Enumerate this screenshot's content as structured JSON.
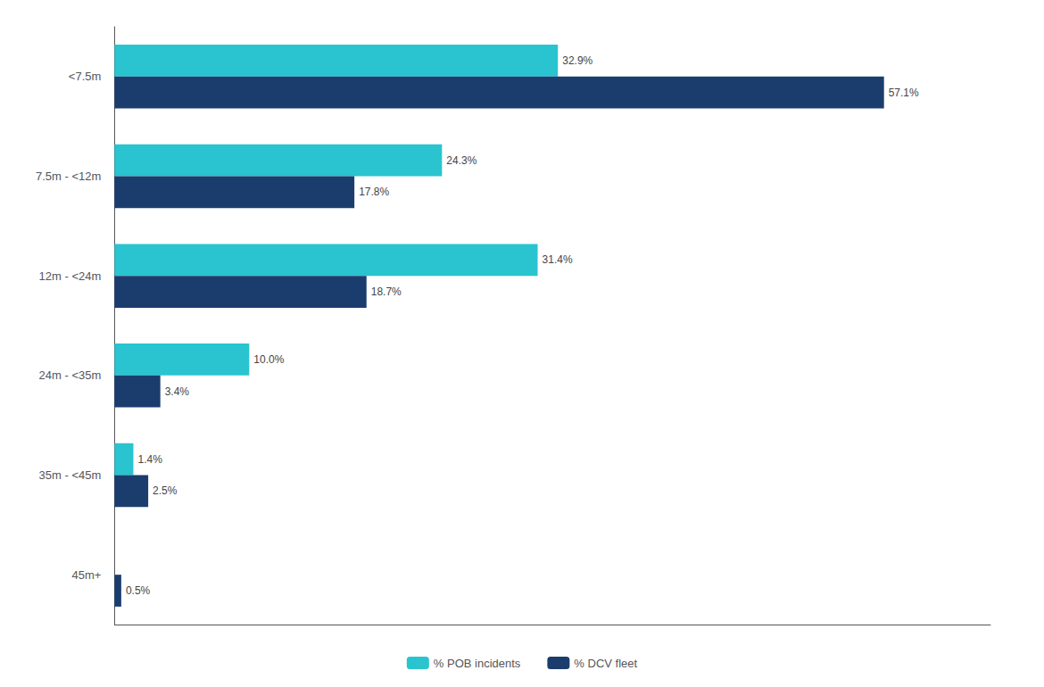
{
  "chart_data": {
    "type": "bar",
    "orientation": "horizontal",
    "categories": [
      "<7.5m",
      "7.5m - <12m",
      "12m - <24m",
      "24m - <35m",
      "35m - <45m",
      "45m+"
    ],
    "series": [
      {
        "name": "% POB incidents",
        "color": "#29C4D0",
        "values": [
          32.9,
          24.3,
          31.4,
          10.0,
          1.4,
          0.0
        ],
        "value_labels": [
          "32.9%",
          "24.3%",
          "31.4%",
          "10.0%",
          "1.4%",
          null
        ]
      },
      {
        "name": "% DCV fleet",
        "color": "#1B3D6E",
        "values": [
          57.1,
          17.8,
          18.7,
          3.4,
          2.5,
          0.5
        ],
        "value_labels": [
          "57.1%",
          "17.8%",
          "18.7%",
          "3.4%",
          "2.5%",
          "0.5%"
        ]
      }
    ],
    "xlim": [
      0,
      65
    ],
    "tick_labels": "y",
    "data_labels": true,
    "legend": "bottom",
    "grid": false
  }
}
